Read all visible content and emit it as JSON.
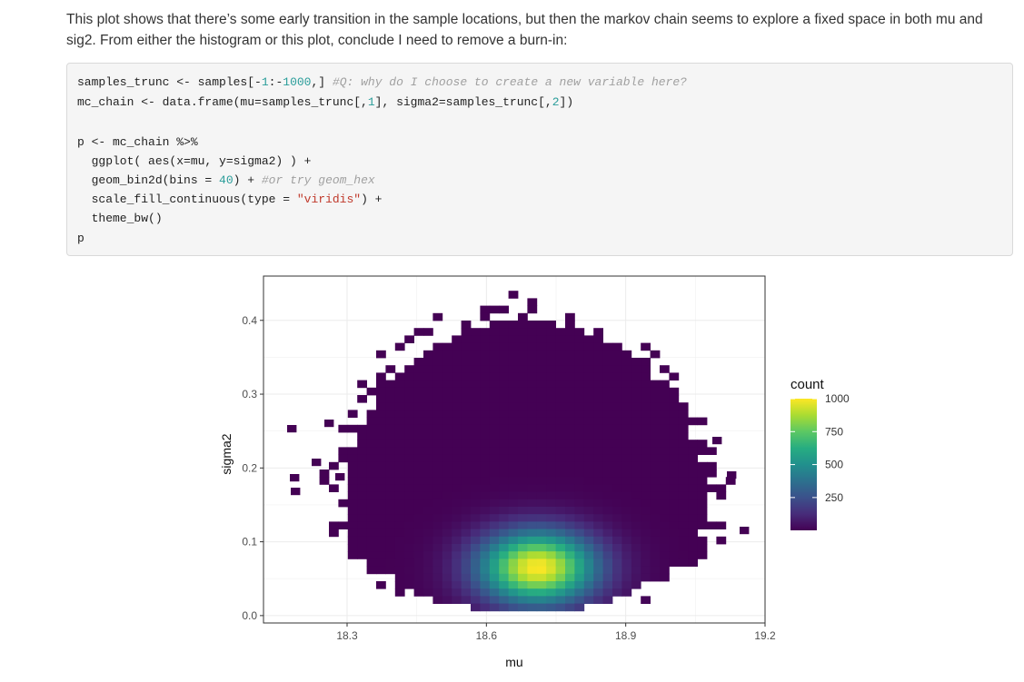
{
  "document": {
    "paragraph": "This plot shows that there’s some early transition in the sample locations, but then the markov chain seems to explore a fixed space in both mu and sig2. From either the histogram or this plot, conclude I need to remove a burn-in:"
  },
  "code_block": {
    "lines": [
      [
        {
          "t": "samples_trunc <- samples[-",
          "c": ""
        },
        {
          "t": "1",
          "c": "num"
        },
        {
          "t": ":-",
          "c": ""
        },
        {
          "t": "1000",
          "c": "num"
        },
        {
          "t": ",] ",
          "c": ""
        },
        {
          "t": "#Q: why do I choose to create a new variable here?",
          "c": "com"
        }
      ],
      [
        {
          "t": "mc_chain <- data.frame(mu=samples_trunc[,",
          "c": ""
        },
        {
          "t": "1",
          "c": "num"
        },
        {
          "t": "], sigma2=samples_trunc[,",
          "c": ""
        },
        {
          "t": "2",
          "c": "num"
        },
        {
          "t": "])",
          "c": ""
        }
      ],
      [],
      [
        {
          "t": "p <- mc_chain %>%",
          "c": ""
        }
      ],
      [
        {
          "t": "  ggplot( aes(x=mu, y=sigma2) ) +",
          "c": ""
        }
      ],
      [
        {
          "t": "  geom_bin2d(bins = ",
          "c": ""
        },
        {
          "t": "40",
          "c": "num"
        },
        {
          "t": ") + ",
          "c": ""
        },
        {
          "t": "#or try geom_hex",
          "c": "com"
        }
      ],
      [
        {
          "t": "  scale_fill_continuous(type = ",
          "c": ""
        },
        {
          "t": "\"viridis\"",
          "c": "str"
        },
        {
          "t": ") +",
          "c": ""
        }
      ],
      [
        {
          "t": "  theme_bw()",
          "c": ""
        }
      ],
      [
        {
          "t": "p",
          "c": ""
        }
      ]
    ]
  },
  "chart_data": {
    "type": "heatmap",
    "title": "",
    "xlabel": "mu",
    "ylabel": "sigma2",
    "xlim": [
      18.12,
      19.2
    ],
    "ylim": [
      -0.01,
      0.46
    ],
    "x_ticks": [
      18.3,
      18.6,
      18.9,
      19.2
    ],
    "y_ticks": [
      0.0,
      0.1,
      0.2,
      0.3,
      0.4
    ],
    "x_tick_labels": [
      "18.3",
      "18.6",
      "18.9",
      "19.2"
    ],
    "y_tick_labels": [
      "0.0",
      "0.1",
      "0.2",
      "0.3",
      "0.4"
    ],
    "grid": true,
    "bins": 40,
    "density_peak": {
      "mu": 18.71,
      "sigma2": 0.065,
      "count": 1000
    },
    "legend": {
      "title": "count",
      "position": "right",
      "breaks": [
        250,
        500,
        750,
        1000
      ],
      "break_labels": [
        "250",
        "500",
        "750",
        "1000"
      ],
      "range": [
        1,
        1000
      ],
      "palette": "viridis"
    },
    "colors": {
      "low": "#440154",
      "mid1": "#3b528b",
      "mid2": "#21918c",
      "mid3": "#5ec962",
      "high": "#fde725"
    }
  }
}
